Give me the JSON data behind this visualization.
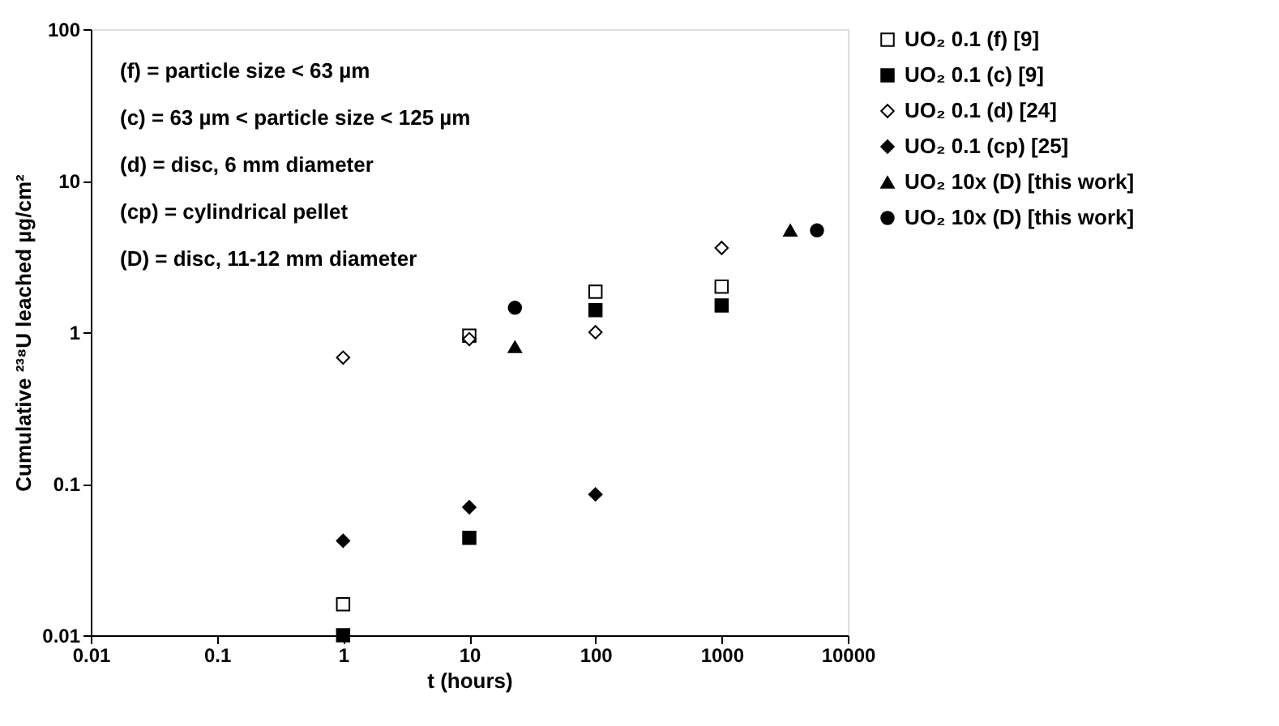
{
  "chart_data": {
    "type": "scatter",
    "xlabel": "t (hours)",
    "ylabel": "Cumulative ²³⁸U leached µg/cm²",
    "log": "xy",
    "xlim": [
      0.01,
      10000
    ],
    "ylim": [
      0.01,
      100
    ],
    "xticks": [
      0.01,
      0.1,
      1,
      10,
      100,
      1000,
      10000
    ],
    "yticks": [
      0.01,
      0.1,
      1,
      10,
      100
    ],
    "grid": false,
    "legend": "right",
    "annotations": [
      "(f) = particle size < 63 µm",
      "(c) = 63 µm < particle size < 125 µm",
      "(d) = disc, 6 mm diameter",
      "(cp) = cylindrical pellet",
      "(D) = disc, 11-12 mm diameter"
    ],
    "series": [
      {
        "name": "UO₂ 0.1 (f) [9]",
        "color": "#ffffff",
        "marker": "square",
        "x": [
          1,
          10,
          100,
          1000
        ],
        "values": [
          0.016,
          0.95,
          1.85,
          2.0
        ]
      },
      {
        "name": "UO₂ 0.1 (c) [9]",
        "color": "#000000",
        "marker": "square",
        "x": [
          1,
          10,
          100,
          1000
        ],
        "values": [
          0.01,
          0.044,
          1.4,
          1.5
        ]
      },
      {
        "name": "UO₂ 0.1 (d) [24]",
        "color": "#ffffff",
        "marker": "diamond",
        "x": [
          1,
          10,
          100,
          1000
        ],
        "values": [
          0.68,
          0.9,
          1.0,
          3.6
        ]
      },
      {
        "name": "UO₂ 0.1 (cp) [25]",
        "color": "#000000",
        "marker": "diamond",
        "x": [
          1,
          10,
          100
        ],
        "values": [
          0.042,
          0.07,
          0.085
        ]
      },
      {
        "name": "UO₂ 10x (D) [this work]",
        "color": "#000000",
        "marker": "triangle",
        "x": [
          23,
          3500
        ],
        "values": [
          0.8,
          4.7
        ]
      },
      {
        "name": "UO₂ 10x (D) [this work]",
        "color": "#000000",
        "marker": "circle",
        "x": [
          23,
          5700
        ],
        "values": [
          1.45,
          4.7
        ]
      }
    ]
  }
}
